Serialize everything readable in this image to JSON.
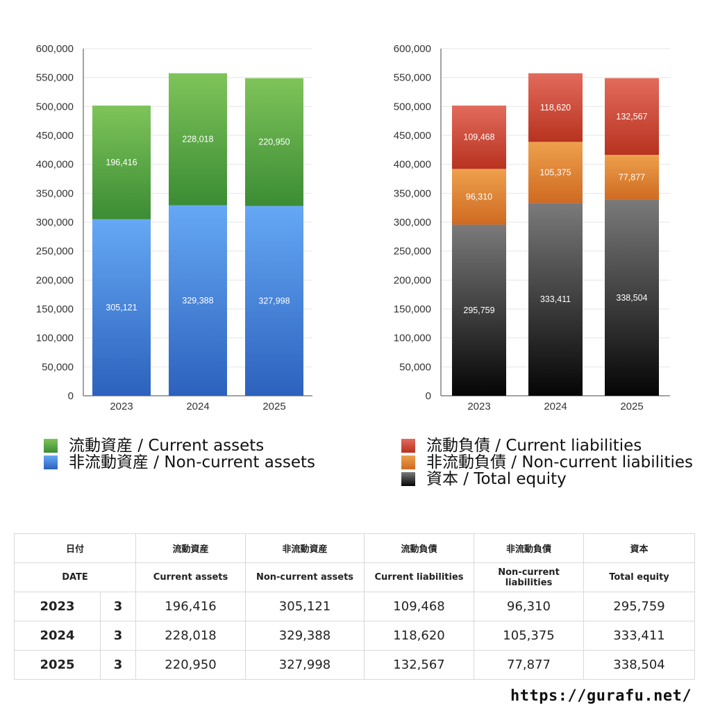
{
  "chart_data": [
    {
      "type": "bar",
      "stacked": true,
      "categories": [
        "2023",
        "2024",
        "2025"
      ],
      "ylim": [
        0,
        600000
      ],
      "yticks": [
        "0",
        "50,000",
        "100,000",
        "150,000",
        "200,000",
        "250,000",
        "300,000",
        "350,000",
        "400,000",
        "450,000",
        "500,000",
        "550,000",
        "600,000"
      ],
      "grid": true,
      "series": [
        {
          "name": "非流動資産 / Non-current assets",
          "values": [
            305121,
            329388,
            327998
          ],
          "labels": [
            "305,121",
            "329,388",
            "327,998"
          ],
          "color_top": "#66a8f5",
          "color_bottom": "#2c62bd"
        },
        {
          "name": "流動資産 / Current assets",
          "values": [
            196416,
            228018,
            220950
          ],
          "labels": [
            "196,416",
            "228,018",
            "220,950"
          ],
          "color_top": "#7fc45a",
          "color_bottom": "#3b8c34"
        }
      ]
    },
    {
      "type": "bar",
      "stacked": true,
      "categories": [
        "2023",
        "2024",
        "2025"
      ],
      "ylim": [
        0,
        600000
      ],
      "yticks": [
        "0",
        "50,000",
        "100,000",
        "150,000",
        "200,000",
        "250,000",
        "300,000",
        "350,000",
        "400,000",
        "450,000",
        "500,000",
        "550,000",
        "600,000"
      ],
      "grid": true,
      "series": [
        {
          "name": "資本 / Total equity",
          "values": [
            295759,
            333411,
            338504
          ],
          "labels": [
            "295,759",
            "333,411",
            "338,504"
          ],
          "color_top": "#7a7a7a",
          "color_bottom": "#050505"
        },
        {
          "name": "非流動負債 / Non-current liabilities",
          "values": [
            96310,
            105375,
            77877
          ],
          "labels": [
            "96,310",
            "105,375",
            "77,877"
          ],
          "color_top": "#eda04c",
          "color_bottom": "#cf6a22"
        },
        {
          "name": "流動負債 / Current liabilities",
          "values": [
            109468,
            118620,
            132567
          ],
          "labels": [
            "109,468",
            "118,620",
            "132,567"
          ],
          "color_top": "#e26b5c",
          "color_bottom": "#b8321f"
        }
      ]
    }
  ],
  "legend_left": [
    {
      "label": "流動資産 / Current assets",
      "color_top": "#7fc45a",
      "color_bottom": "#3b8c34"
    },
    {
      "label": "非流動資産 / Non-current assets",
      "color_top": "#66a8f5",
      "color_bottom": "#2c62bd"
    }
  ],
  "legend_right": [
    {
      "label": "流動負債 / Current liabilities",
      "color_top": "#e26b5c",
      "color_bottom": "#b8321f"
    },
    {
      "label": "非流動負債 / Non-current liabilities",
      "color_top": "#eda04c",
      "color_bottom": "#cf6a22"
    },
    {
      "label": "資本 / Total equity",
      "color_top": "#7a7a7a",
      "color_bottom": "#050505"
    }
  ],
  "table": {
    "header_jp": {
      "date": "日付",
      "c1": "流動資産",
      "c2": "非流動資産",
      "c3": "流動負債",
      "c4": "非流動負債",
      "c5": "資本"
    },
    "header_en": {
      "date": "DATE",
      "c1": "Current assets",
      "c2": "Non-current assets",
      "c3": "Current liabilities",
      "c4": "Non-current liabilities",
      "c5": "Total equity"
    },
    "rows": [
      {
        "year": "2023",
        "month": "3",
        "c1": "196,416",
        "c2": "305,121",
        "c3": "109,468",
        "c4": "96,310",
        "c5": "295,759"
      },
      {
        "year": "2024",
        "month": "3",
        "c1": "228,018",
        "c2": "329,388",
        "c3": "118,620",
        "c4": "105,375",
        "c5": "333,411"
      },
      {
        "year": "2025",
        "month": "3",
        "c1": "220,950",
        "c2": "327,998",
        "c3": "132,567",
        "c4": "77,877",
        "c5": "338,504"
      }
    ]
  },
  "footer": {
    "url": "https://gurafu.net/"
  }
}
